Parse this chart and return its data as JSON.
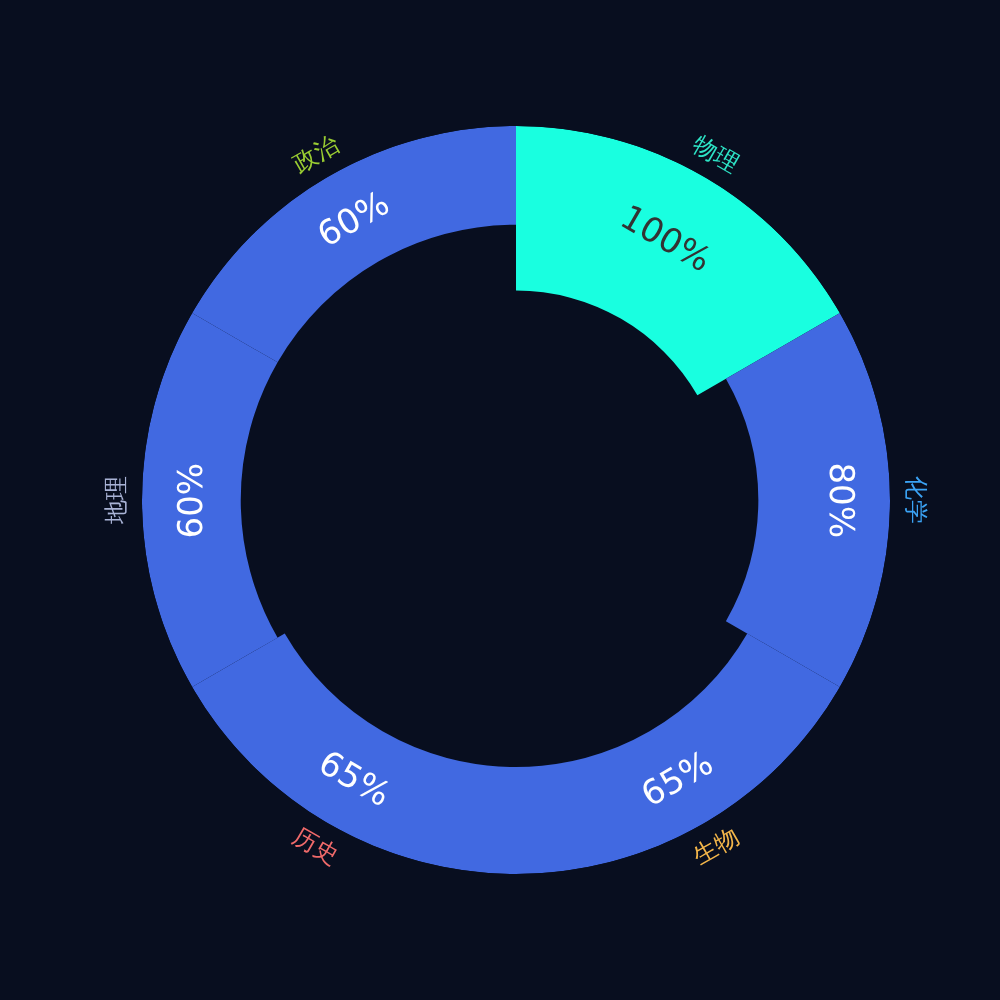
{
  "chart_data": {
    "type": "other",
    "categories": [
      "物理",
      "化学",
      "生物",
      "历史",
      "地理",
      "政治"
    ],
    "values": [
      100,
      80,
      65,
      65,
      60,
      60
    ],
    "colors": [
      "#19ffe0",
      "#4169e1",
      "#4169e1",
      "#4169e1",
      "#4169e1",
      "#4169e1"
    ],
    "value_labels": [
      "100%",
      "80%",
      "65%",
      "65%",
      "60%",
      "60%"
    ]
  }
}
